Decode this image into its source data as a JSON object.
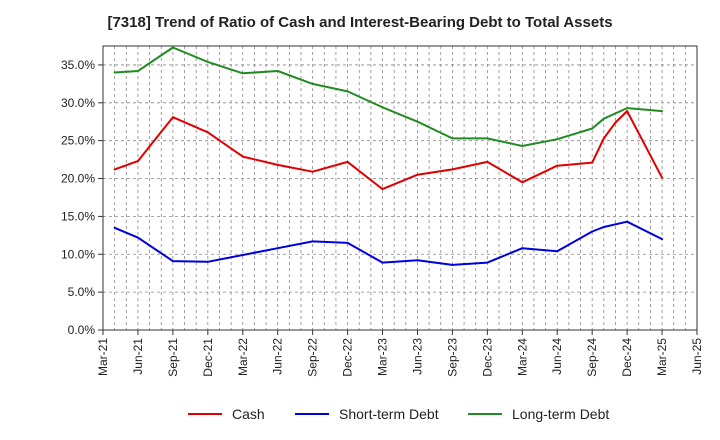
{
  "chart_data": {
    "type": "line",
    "title": "[7318]  Trend of Ratio of Cash and Interest-Bearing Debt to Total Assets",
    "xlabel": "",
    "ylabel": "",
    "ylim": [
      0,
      37.5
    ],
    "yticks": [
      0,
      5,
      10,
      15,
      20,
      25,
      30,
      35
    ],
    "ytick_labels": [
      "0.0%",
      "5.0%",
      "10.0%",
      "15.0%",
      "20.0%",
      "25.0%",
      "30.0%",
      "35.0%"
    ],
    "x_range": [
      "2021-03",
      "2025-06"
    ],
    "xtick_labels": [
      "Mar-21",
      "Jun-21",
      "Sep-21",
      "Dec-21",
      "Mar-22",
      "Jun-22",
      "Sep-22",
      "Dec-22",
      "Mar-23",
      "Jun-23",
      "Sep-23",
      "Dec-23",
      "Mar-24",
      "Jun-24",
      "Sep-24",
      "Dec-24",
      "Mar-25",
      "Jun-25"
    ],
    "grid": true,
    "legend_position": "bottom",
    "series": [
      {
        "name": "Cash",
        "color": "#e00000",
        "x": [
          "2021-04",
          "2021-06",
          "2021-09",
          "2021-12",
          "2022-03",
          "2022-06",
          "2022-09",
          "2022-12",
          "2023-03",
          "2023-06",
          "2023-09",
          "2023-12",
          "2024-03",
          "2024-06",
          "2024-09",
          "2024-10",
          "2024-11",
          "2024-12",
          "2025-03"
        ],
        "values": [
          21.2,
          22.3,
          28.1,
          26.1,
          22.9,
          21.8,
          20.9,
          22.2,
          18.6,
          20.5,
          21.2,
          22.2,
          19.5,
          21.7,
          22.1,
          25.3,
          27.4,
          28.9,
          20.1
        ]
      },
      {
        "name": "Short-term Debt",
        "color": "#0000dd",
        "x": [
          "2021-04",
          "2021-06",
          "2021-09",
          "2021-12",
          "2022-03",
          "2022-06",
          "2022-09",
          "2022-12",
          "2023-03",
          "2023-06",
          "2023-09",
          "2023-12",
          "2024-03",
          "2024-06",
          "2024-09",
          "2024-10",
          "2024-12",
          "2025-03"
        ],
        "values": [
          13.5,
          12.2,
          9.1,
          9.0,
          9.9,
          10.8,
          11.7,
          11.5,
          8.9,
          9.2,
          8.6,
          8.9,
          10.8,
          10.4,
          13.0,
          13.6,
          14.3,
          12.0
        ]
      },
      {
        "name": "Long-term Debt",
        "color": "#228b22",
        "x": [
          "2021-04",
          "2021-06",
          "2021-09",
          "2021-12",
          "2022-03",
          "2022-06",
          "2022-09",
          "2022-12",
          "2023-03",
          "2023-06",
          "2023-09",
          "2023-12",
          "2024-03",
          "2024-06",
          "2024-09",
          "2024-10",
          "2024-12",
          "2025-03"
        ],
        "values": [
          34.0,
          34.2,
          37.3,
          35.4,
          33.9,
          34.2,
          32.5,
          31.5,
          29.4,
          27.5,
          25.3,
          25.3,
          24.3,
          25.2,
          26.6,
          27.9,
          29.3,
          28.9
        ]
      }
    ]
  }
}
